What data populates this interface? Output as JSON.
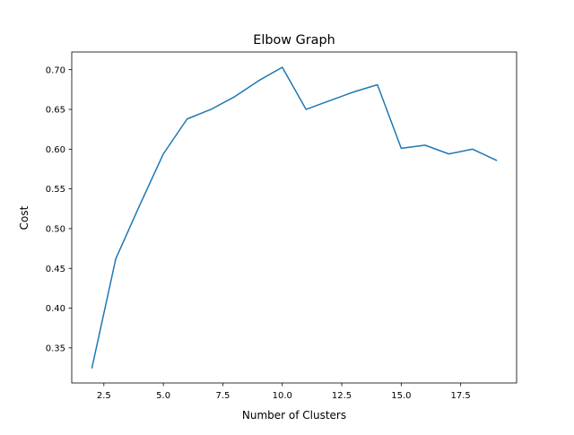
{
  "chart_data": {
    "type": "line",
    "title": "Elbow Graph",
    "xlabel": "Number of Clusters",
    "ylabel": "Cost",
    "xlim": [
      1.15,
      19.85
    ],
    "ylim": [
      0.3058,
      0.7222
    ],
    "x_ticks": [
      2.5,
      5.0,
      7.5,
      10.0,
      12.5,
      15.0,
      17.5
    ],
    "x_tick_labels": [
      "2.5",
      "5.0",
      "7.5",
      "10.0",
      "12.5",
      "15.0",
      "17.5"
    ],
    "y_ticks": [
      0.35,
      0.4,
      0.45,
      0.5,
      0.55,
      0.6,
      0.65,
      0.7
    ],
    "y_tick_labels": [
      "0.35",
      "0.40",
      "0.45",
      "0.50",
      "0.55",
      "0.60",
      "0.65",
      "0.70"
    ],
    "grid": false,
    "series": [
      {
        "color": "#1f77b4",
        "x": [
          2,
          3,
          4,
          5,
          6,
          7,
          8,
          9,
          10,
          11,
          12,
          13,
          14,
          15,
          16,
          17,
          18,
          19
        ],
        "y": [
          0.325,
          0.462,
          0.529,
          0.594,
          0.638,
          0.65,
          0.666,
          0.686,
          0.703,
          0.65,
          0.661,
          0.672,
          0.681,
          0.601,
          0.605,
          0.594,
          0.6,
          0.586
        ]
      }
    ]
  }
}
